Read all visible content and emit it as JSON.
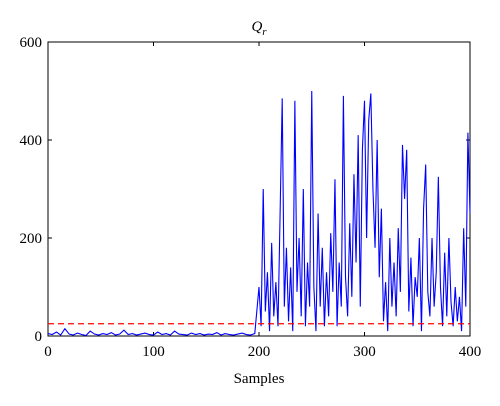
{
  "chart_data": {
    "type": "line",
    "title": "Q",
    "title_subscript": "r",
    "x_label": "Samples",
    "x": [
      0,
      4,
      8,
      12,
      16,
      20,
      24,
      28,
      32,
      36,
      40,
      44,
      48,
      52,
      56,
      60,
      64,
      68,
      72,
      76,
      80,
      84,
      88,
      92,
      96,
      100,
      104,
      108,
      112,
      116,
      120,
      124,
      128,
      132,
      136,
      140,
      144,
      148,
      152,
      156,
      160,
      164,
      168,
      172,
      176,
      180,
      184,
      188,
      192,
      196,
      200,
      202,
      204,
      206,
      208,
      210,
      212,
      214,
      216,
      218,
      220,
      222,
      224,
      226,
      228,
      230,
      232,
      234,
      236,
      238,
      240,
      242,
      244,
      246,
      248,
      250,
      252,
      254,
      256,
      258,
      260,
      262,
      264,
      266,
      268,
      270,
      272,
      274,
      276,
      278,
      280,
      282,
      284,
      286,
      288,
      290,
      292,
      294,
      296,
      298,
      300,
      302,
      304,
      306,
      308,
      310,
      312,
      314,
      316,
      318,
      320,
      322,
      324,
      326,
      328,
      330,
      332,
      334,
      336,
      338,
      340,
      342,
      344,
      346,
      348,
      350,
      352,
      354,
      356,
      358,
      360,
      362,
      364,
      366,
      368,
      370,
      372,
      374,
      376,
      378,
      380,
      382,
      384,
      386,
      388,
      390,
      392,
      394,
      396,
      398,
      400
    ],
    "series": [
      {
        "name": "Qr",
        "color": "#0000ff",
        "values": [
          5,
          3,
          8,
          2,
          15,
          4,
          2,
          6,
          3,
          1,
          10,
          4,
          2,
          5,
          3,
          7,
          2,
          4,
          12,
          3,
          5,
          2,
          4,
          6,
          3,
          2,
          8,
          3,
          5,
          2,
          10,
          4,
          3,
          2,
          6,
          3,
          5,
          2,
          4,
          3,
          7,
          2,
          5,
          3,
          2,
          4,
          6,
          3,
          2,
          5,
          100,
          20,
          300,
          50,
          130,
          10,
          190,
          40,
          110,
          20,
          250,
          485,
          60,
          180,
          30,
          140,
          10,
          480,
          90,
          200,
          40,
          300,
          20,
          150,
          60,
          500,
          100,
          10,
          250,
          60,
          180,
          20,
          130,
          40,
          210,
          90,
          320,
          20,
          150,
          60,
          490,
          120,
          40,
          230,
          80,
          330,
          150,
          410,
          60,
          380,
          480,
          200,
          440,
          495,
          300,
          180,
          400,
          120,
          260,
          30,
          110,
          10,
          200,
          60,
          150,
          40,
          220,
          90,
          390,
          280,
          380,
          50,
          160,
          20,
          120,
          80,
          200,
          10,
          260,
          350,
          90,
          40,
          200,
          60,
          130,
          325,
          100,
          20,
          170,
          40,
          200,
          70,
          20,
          100,
          30,
          80,
          10,
          220,
          60,
          415,
          250
        ]
      }
    ],
    "threshold": 25,
    "threshold_color": "#ff0000",
    "xlim": [
      0,
      400
    ],
    "xticks": [
      0,
      100,
      200,
      300,
      400
    ],
    "ylim": [
      0,
      600
    ],
    "yticks": [
      0,
      200,
      400,
      600
    ]
  }
}
